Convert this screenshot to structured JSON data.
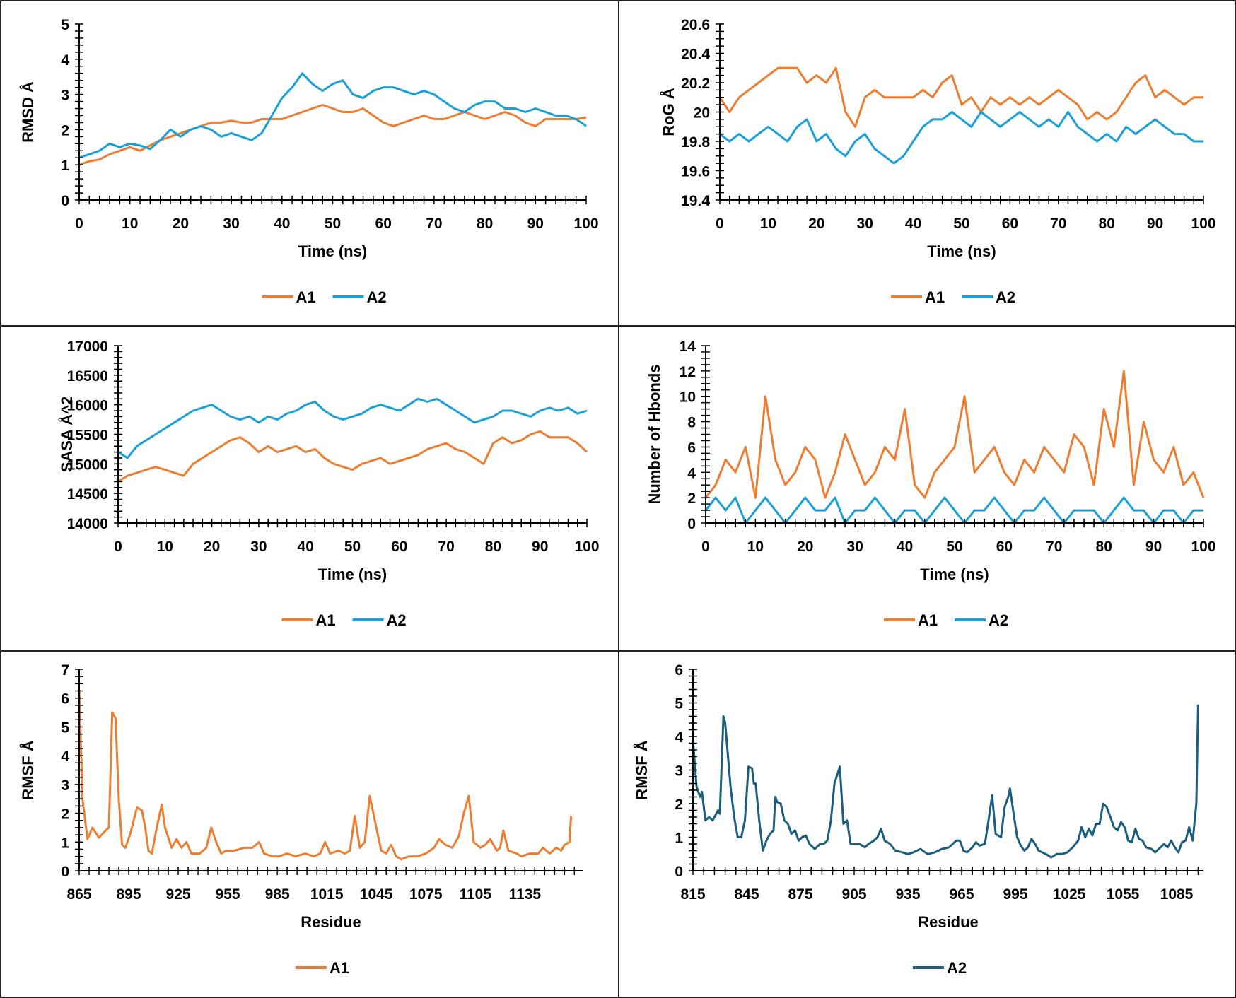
{
  "colors": {
    "A1": "#ED7D31",
    "A2": "#1AA0D8",
    "A2_rmsf": "#1B5E7E"
  },
  "chart_data": [
    {
      "id": "rmsd",
      "type": "line",
      "title": "",
      "xlabel": "Time (ns)",
      "ylabel": "RMSD  Å",
      "xlim": [
        0,
        100
      ],
      "ylim": [
        0,
        5
      ],
      "xticks": [
        0,
        10,
        20,
        30,
        40,
        50,
        60,
        70,
        80,
        90,
        100
      ],
      "yticks": [
        0,
        1,
        2,
        3,
        4,
        5
      ],
      "xminor": 2,
      "yminor": 0.2,
      "legend": "bottom-center",
      "grid": false,
      "x_step": 2,
      "x_start": 0,
      "series": [
        {
          "name": "A1",
          "color_key": "A1",
          "values": [
            1.0,
            1.1,
            1.15,
            1.3,
            1.4,
            1.5,
            1.4,
            1.55,
            1.7,
            1.8,
            1.9,
            2.0,
            2.1,
            2.2,
            2.2,
            2.25,
            2.2,
            2.2,
            2.3,
            2.3,
            2.3,
            2.4,
            2.5,
            2.6,
            2.7,
            2.6,
            2.5,
            2.5,
            2.6,
            2.4,
            2.2,
            2.1,
            2.2,
            2.3,
            2.4,
            2.3,
            2.3,
            2.4,
            2.5,
            2.4,
            2.3,
            2.4,
            2.5,
            2.4,
            2.2,
            2.1,
            2.3,
            2.3,
            2.3,
            2.3,
            2.35
          ]
        },
        {
          "name": "A2",
          "color_key": "A2",
          "values": [
            1.2,
            1.3,
            1.4,
            1.6,
            1.5,
            1.6,
            1.55,
            1.45,
            1.7,
            2.0,
            1.8,
            2.0,
            2.1,
            2.0,
            1.8,
            1.9,
            1.8,
            1.7,
            1.9,
            2.4,
            2.9,
            3.2,
            3.6,
            3.3,
            3.1,
            3.3,
            3.4,
            3.0,
            2.9,
            3.1,
            3.2,
            3.2,
            3.1,
            3.0,
            3.1,
            3.0,
            2.8,
            2.6,
            2.5,
            2.7,
            2.8,
            2.8,
            2.6,
            2.6,
            2.5,
            2.6,
            2.5,
            2.4,
            2.4,
            2.3,
            2.1
          ]
        }
      ]
    },
    {
      "id": "rog",
      "type": "line",
      "title": "",
      "xlabel": "Time (ns)",
      "ylabel": "RoG Å",
      "xlim": [
        0,
        100
      ],
      "ylim": [
        19.4,
        20.6
      ],
      "xticks": [
        0,
        10,
        20,
        30,
        40,
        50,
        60,
        70,
        80,
        90,
        100
      ],
      "yticks": [
        19.4,
        19.6,
        19.8,
        20,
        20.2,
        20.4,
        20.6
      ],
      "xminor": 2,
      "yminor": 0.05,
      "legend": "bottom-center",
      "grid": false,
      "x_step": 2,
      "x_start": 0,
      "series": [
        {
          "name": "A1",
          "color_key": "A1",
          "values": [
            20.1,
            20.0,
            20.1,
            20.15,
            20.2,
            20.25,
            20.3,
            20.3,
            20.3,
            20.2,
            20.25,
            20.2,
            20.3,
            20.0,
            19.9,
            20.1,
            20.15,
            20.1,
            20.1,
            20.1,
            20.1,
            20.15,
            20.1,
            20.2,
            20.25,
            20.05,
            20.1,
            20.0,
            20.1,
            20.05,
            20.1,
            20.05,
            20.1,
            20.05,
            20.1,
            20.15,
            20.1,
            20.05,
            19.95,
            20.0,
            19.95,
            20.0,
            20.1,
            20.2,
            20.25,
            20.1,
            20.15,
            20.1,
            20.05,
            20.1,
            20.1
          ]
        },
        {
          "name": "A2",
          "color_key": "A2",
          "values": [
            19.85,
            19.8,
            19.85,
            19.8,
            19.85,
            19.9,
            19.85,
            19.8,
            19.9,
            19.95,
            19.8,
            19.85,
            19.75,
            19.7,
            19.8,
            19.85,
            19.75,
            19.7,
            19.65,
            19.7,
            19.8,
            19.9,
            19.95,
            19.95,
            20.0,
            19.95,
            19.9,
            20.0,
            19.95,
            19.9,
            19.95,
            20.0,
            19.95,
            19.9,
            19.95,
            19.9,
            20.0,
            19.9,
            19.85,
            19.8,
            19.85,
            19.8,
            19.9,
            19.85,
            19.9,
            19.95,
            19.9,
            19.85,
            19.85,
            19.8,
            19.8
          ]
        }
      ]
    },
    {
      "id": "sasa",
      "type": "line",
      "title": "",
      "xlabel": "Time (ns)",
      "ylabel": "SASA  Å^2",
      "xlim": [
        0,
        100
      ],
      "ylim": [
        14000,
        17000
      ],
      "xticks": [
        0,
        10,
        20,
        30,
        40,
        50,
        60,
        70,
        80,
        90,
        100
      ],
      "yticks": [
        14000,
        14500,
        15000,
        15500,
        16000,
        16500,
        17000
      ],
      "xminor": 2,
      "yminor": 100,
      "legend": "bottom-center",
      "grid": false,
      "x_step": 2,
      "x_start": 0,
      "series": [
        {
          "name": "A1",
          "color_key": "A1",
          "values": [
            14700,
            14800,
            14850,
            14900,
            14950,
            14900,
            14850,
            14800,
            15000,
            15100,
            15200,
            15300,
            15400,
            15450,
            15350,
            15200,
            15300,
            15200,
            15250,
            15300,
            15200,
            15250,
            15100,
            15000,
            14950,
            14900,
            15000,
            15050,
            15100,
            15000,
            15050,
            15100,
            15150,
            15250,
            15300,
            15350,
            15250,
            15200,
            15100,
            15000,
            15350,
            15450,
            15350,
            15400,
            15500,
            15550,
            15450,
            15450,
            15450,
            15350,
            15200
          ]
        },
        {
          "name": "A2",
          "color_key": "A2",
          "values": [
            15200,
            15100,
            15300,
            15400,
            15500,
            15600,
            15700,
            15800,
            15900,
            15950,
            16000,
            15900,
            15800,
            15750,
            15800,
            15700,
            15800,
            15750,
            15850,
            15900,
            16000,
            16050,
            15900,
            15800,
            15750,
            15800,
            15850,
            15950,
            16000,
            15950,
            15900,
            16000,
            16100,
            16050,
            16100,
            16000,
            15900,
            15800,
            15700,
            15750,
            15800,
            15900,
            15900,
            15850,
            15800,
            15900,
            15950,
            15900,
            15950,
            15850,
            15900
          ]
        }
      ]
    },
    {
      "id": "hbonds",
      "type": "line",
      "title": "",
      "xlabel": "Time (ns)",
      "ylabel": "Number of Hbonds",
      "xlim": [
        0,
        100
      ],
      "ylim": [
        0,
        14
      ],
      "xticks": [
        0,
        10,
        20,
        30,
        40,
        50,
        60,
        70,
        80,
        90,
        100
      ],
      "yticks": [
        0,
        2,
        4,
        6,
        8,
        10,
        12,
        14
      ],
      "xminor": 2,
      "yminor": 0.5,
      "legend": "bottom-center",
      "grid": false,
      "x_step": 2,
      "x_start": 0,
      "series": [
        {
          "name": "A1",
          "color_key": "A1",
          "values": [
            2,
            3,
            5,
            4,
            6,
            2,
            10,
            5,
            3,
            4,
            6,
            5,
            2,
            4,
            7,
            5,
            3,
            4,
            6,
            5,
            9,
            3,
            2,
            4,
            5,
            6,
            10,
            4,
            5,
            6,
            4,
            3,
            5,
            4,
            6,
            5,
            4,
            7,
            6,
            3,
            9,
            6,
            12,
            3,
            8,
            5,
            4,
            6,
            3,
            4,
            2
          ]
        },
        {
          "name": "A2",
          "color_key": "A2",
          "values": [
            1,
            2,
            1,
            2,
            0,
            1,
            2,
            1,
            0,
            1,
            2,
            1,
            1,
            2,
            0,
            1,
            1,
            2,
            1,
            0,
            1,
            1,
            0,
            1,
            2,
            1,
            0,
            1,
            1,
            2,
            1,
            0,
            1,
            1,
            2,
            1,
            0,
            1,
            1,
            1,
            0,
            1,
            2,
            1,
            1,
            0,
            1,
            1,
            0,
            1,
            1
          ]
        }
      ]
    },
    {
      "id": "rmsf_a1",
      "type": "line",
      "title": "",
      "xlabel": "Residue",
      "ylabel": "RMSF Å",
      "xlim": [
        865,
        1170
      ],
      "ylim": [
        0,
        7
      ],
      "xticks": [
        865,
        895,
        925,
        955,
        985,
        1015,
        1045,
        1075,
        1105,
        1135
      ],
      "yticks": [
        0,
        1,
        2,
        3,
        4,
        5,
        6,
        7
      ],
      "xminor": 6,
      "yminor": 0.25,
      "legend": "bottom-center",
      "grid": false,
      "series": [
        {
          "name": "A1",
          "color_key": "A1",
          "x": [
            865,
            867,
            870,
            873,
            877,
            881,
            883,
            885,
            887,
            889,
            891,
            893,
            896,
            900,
            903,
            905,
            907,
            909,
            912,
            915,
            917,
            921,
            924,
            927,
            930,
            933,
            938,
            942,
            945,
            948,
            951,
            954,
            959,
            965,
            970,
            974,
            977,
            982,
            986,
            991,
            996,
            1002,
            1007,
            1011,
            1014,
            1017,
            1022,
            1026,
            1029,
            1032,
            1035,
            1038,
            1041,
            1045,
            1048,
            1051,
            1054,
            1057,
            1060,
            1065,
            1070,
            1075,
            1080,
            1083,
            1087,
            1091,
            1095,
            1098,
            1101,
            1104,
            1108,
            1111,
            1114,
            1118,
            1120,
            1122,
            1125,
            1130,
            1133,
            1138,
            1143,
            1146,
            1150,
            1154,
            1157,
            1159,
            1162,
            1163
          ],
          "values": [
            6.3,
            2.5,
            1.1,
            1.5,
            1.15,
            1.4,
            1.5,
            5.5,
            5.3,
            2.5,
            0.9,
            0.8,
            1.3,
            2.2,
            2.1,
            1.5,
            0.7,
            0.6,
            1.5,
            2.3,
            1.5,
            0.8,
            1.1,
            0.8,
            1.0,
            0.6,
            0.6,
            0.8,
            1.5,
            1.0,
            0.6,
            0.7,
            0.7,
            0.8,
            0.8,
            1.0,
            0.6,
            0.5,
            0.5,
            0.6,
            0.5,
            0.6,
            0.5,
            0.6,
            1.0,
            0.6,
            0.7,
            0.6,
            0.7,
            1.9,
            0.8,
            1.0,
            2.6,
            1.5,
            0.7,
            0.6,
            0.9,
            0.5,
            0.4,
            0.5,
            0.5,
            0.6,
            0.8,
            1.1,
            0.9,
            0.8,
            1.2,
            2.0,
            2.6,
            1.0,
            0.8,
            0.9,
            1.1,
            0.7,
            0.8,
            1.4,
            0.7,
            0.6,
            0.5,
            0.6,
            0.6,
            0.8,
            0.6,
            0.8,
            0.7,
            0.9,
            1.0,
            1.9
          ]
        }
      ]
    },
    {
      "id": "rmsf_a2",
      "type": "line",
      "title": "",
      "xlabel": "Residue",
      "ylabel": "RMSF Å",
      "xlim": [
        815,
        1100
      ],
      "ylim": [
        0,
        6
      ],
      "xticks": [
        815,
        845,
        875,
        905,
        935,
        965,
        995,
        1025,
        1055,
        1085
      ],
      "yticks": [
        0,
        1,
        2,
        3,
        4,
        5,
        6
      ],
      "xminor": 6,
      "yminor": 0.2,
      "legend": "bottom-center",
      "grid": false,
      "series": [
        {
          "name": "A2",
          "color_key": "A2_rmsf",
          "x": [
            815,
            817,
            819,
            820,
            822,
            824,
            826,
            829,
            830,
            832,
            833,
            836,
            838,
            840,
            842,
            844,
            846,
            848,
            849,
            850,
            852,
            854,
            856,
            858,
            860,
            861,
            862,
            864,
            866,
            868,
            870,
            872,
            874,
            876,
            878,
            880,
            883,
            886,
            888,
            890,
            892,
            894,
            897,
            899,
            901,
            903,
            905,
            908,
            911,
            913,
            916,
            918,
            920,
            922,
            925,
            928,
            932,
            935,
            938,
            942,
            946,
            950,
            954,
            958,
            962,
            964,
            966,
            968,
            971,
            973,
            975,
            978,
            980,
            982,
            984,
            987,
            989,
            991,
            992,
            994,
            996,
            998,
            1000,
            1002,
            1004,
            1006,
            1008,
            1012,
            1015,
            1018,
            1021,
            1024,
            1027,
            1030,
            1032,
            1034,
            1036,
            1038,
            1040,
            1042,
            1044,
            1046,
            1048,
            1050,
            1052,
            1054,
            1056,
            1058,
            1060,
            1062,
            1064,
            1066,
            1068,
            1071,
            1073,
            1075,
            1078,
            1080,
            1082,
            1084,
            1086,
            1088,
            1090,
            1092,
            1094,
            1096,
            1097
          ],
          "values": [
            3.9,
            2.5,
            2.2,
            2.35,
            1.5,
            1.6,
            1.5,
            1.8,
            1.7,
            4.6,
            4.4,
            2.5,
            1.6,
            1.0,
            1.0,
            1.5,
            3.1,
            3.05,
            2.6,
            2.6,
            1.5,
            0.6,
            0.9,
            1.1,
            1.2,
            2.2,
            2.05,
            2.0,
            1.5,
            1.4,
            1.1,
            1.2,
            0.9,
            1.0,
            1.05,
            0.8,
            0.65,
            0.8,
            0.8,
            0.9,
            1.5,
            2.6,
            3.1,
            1.4,
            1.5,
            0.8,
            0.8,
            0.8,
            0.7,
            0.8,
            0.9,
            1.0,
            1.25,
            0.9,
            0.8,
            0.6,
            0.55,
            0.5,
            0.55,
            0.65,
            0.5,
            0.55,
            0.65,
            0.7,
            0.9,
            0.9,
            0.6,
            0.55,
            0.7,
            0.85,
            0.75,
            0.8,
            1.5,
            2.25,
            1.1,
            1.0,
            1.9,
            2.2,
            2.45,
            1.7,
            1.0,
            0.75,
            0.6,
            0.7,
            0.95,
            0.8,
            0.6,
            0.5,
            0.4,
            0.5,
            0.5,
            0.55,
            0.7,
            0.9,
            1.3,
            1.0,
            1.25,
            1.05,
            1.4,
            1.4,
            2.0,
            1.9,
            1.6,
            1.3,
            1.2,
            1.45,
            1.3,
            0.9,
            0.85,
            1.25,
            0.95,
            0.9,
            0.7,
            0.65,
            0.55,
            0.65,
            0.8,
            0.7,
            0.9,
            0.7,
            0.55,
            0.85,
            0.9,
            1.3,
            0.9,
            2.0,
            4.95
          ]
        }
      ]
    }
  ]
}
